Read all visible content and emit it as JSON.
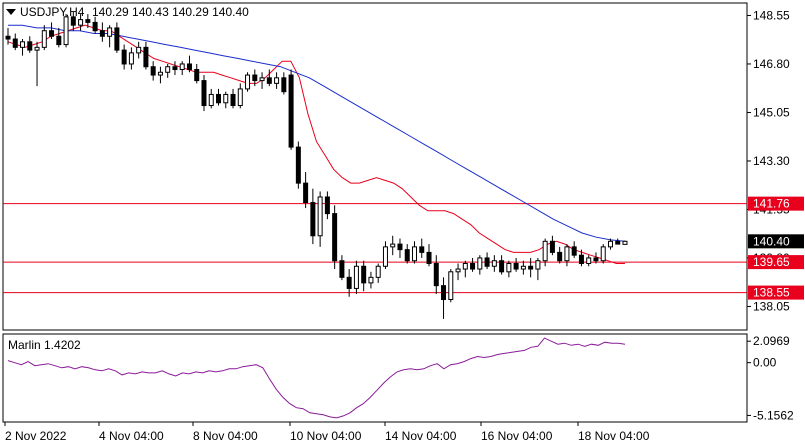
{
  "header": {
    "symbol": "USDJPY,H4",
    "ohlc": "140.29 140.43 140.29 140.40"
  },
  "indicator": {
    "label": "Marlin 1.4202"
  },
  "colors": {
    "bull_fill": "#ffffff",
    "bear_fill": "#000000",
    "ma_fast": "#e8001c",
    "ma_slow": "#1a2ecc",
    "level": "#e8001c",
    "osc": "#8b1a9a",
    "price_tag": "#000000",
    "level_tag": "#e8001c"
  },
  "chart_data": [
    {
      "type": "candlestick",
      "title": "USDJPY,H4",
      "x_labels": [
        "2 Nov 2022",
        "4 Nov 04:00",
        "8 Nov 04:00",
        "10 Nov 04:00",
        "14 Nov 04:00",
        "16 Nov 04:00",
        "18 Nov 04:00"
      ],
      "y_ticks": [
        "148.55",
        "146.80",
        "145.05",
        "143.30",
        "141.55",
        "139.80",
        "138.05"
      ],
      "ylim": [
        137.2,
        149.0
      ],
      "candles": [
        [
          147.8,
          148.1,
          147.5,
          147.7
        ],
        [
          147.7,
          147.9,
          147.3,
          147.4
        ],
        [
          147.4,
          147.7,
          147.1,
          147.6
        ],
        [
          147.6,
          147.8,
          147.2,
          147.3
        ],
        [
          147.3,
          147.6,
          146.0,
          147.4
        ],
        [
          147.4,
          148.2,
          147.3,
          148.0
        ],
        [
          148.0,
          148.3,
          147.7,
          147.8
        ],
        [
          147.8,
          148.1,
          147.4,
          147.5
        ],
        [
          147.5,
          148.6,
          147.4,
          148.5
        ],
        [
          148.5,
          148.7,
          148.0,
          148.2
        ],
        [
          148.2,
          148.6,
          148.0,
          148.4
        ],
        [
          148.4,
          148.6,
          148.1,
          148.3
        ],
        [
          148.3,
          148.5,
          147.9,
          148.0
        ],
        [
          148.0,
          148.3,
          147.6,
          147.8
        ],
        [
          147.8,
          148.2,
          147.4,
          148.1
        ],
        [
          148.1,
          148.3,
          147.2,
          147.3
        ],
        [
          147.3,
          147.5,
          146.6,
          146.8
        ],
        [
          146.8,
          147.4,
          146.6,
          147.2
        ],
        [
          147.2,
          147.6,
          147.0,
          147.4
        ],
        [
          147.4,
          147.6,
          146.6,
          146.7
        ],
        [
          146.7,
          146.9,
          146.2,
          146.4
        ],
        [
          146.4,
          146.7,
          146.1,
          146.5
        ],
        [
          146.5,
          146.8,
          146.3,
          146.7
        ],
        [
          146.7,
          146.9,
          146.4,
          146.6
        ],
        [
          146.6,
          146.9,
          146.4,
          146.8
        ],
        [
          146.8,
          147.1,
          146.5,
          146.6
        ],
        [
          146.6,
          146.8,
          146.1,
          146.2
        ],
        [
          146.2,
          146.4,
          145.1,
          145.3
        ],
        [
          145.3,
          145.9,
          145.2,
          145.7
        ],
        [
          145.7,
          145.9,
          145.3,
          145.4
        ],
        [
          145.4,
          145.8,
          145.2,
          145.7
        ],
        [
          145.7,
          145.9,
          145.2,
          145.3
        ],
        [
          145.3,
          146.1,
          145.2,
          145.9
        ],
        [
          145.9,
          146.5,
          145.8,
          146.4
        ],
        [
          146.4,
          146.6,
          146.0,
          146.2
        ],
        [
          146.2,
          146.5,
          145.9,
          146.3
        ],
        [
          146.3,
          146.6,
          146.0,
          146.1
        ],
        [
          146.1,
          146.5,
          145.9,
          146.3
        ],
        [
          146.3,
          146.5,
          145.7,
          145.8
        ],
        [
          146.4,
          146.6,
          143.7,
          143.8
        ],
        [
          143.8,
          144.0,
          142.3,
          142.5
        ],
        [
          142.5,
          142.9,
          141.6,
          141.8
        ],
        [
          141.8,
          142.3,
          140.3,
          140.6
        ],
        [
          140.6,
          142.2,
          140.2,
          142.0
        ],
        [
          142.0,
          142.2,
          141.2,
          141.4
        ],
        [
          141.4,
          141.7,
          139.4,
          139.7
        ],
        [
          139.7,
          139.9,
          139.0,
          139.1
        ],
        [
          139.1,
          139.4,
          138.4,
          138.7
        ],
        [
          138.7,
          139.7,
          138.5,
          139.5
        ],
        [
          139.5,
          139.7,
          138.6,
          138.9
        ],
        [
          138.9,
          139.3,
          138.7,
          139.1
        ],
        [
          139.1,
          139.6,
          138.9,
          139.5
        ],
        [
          139.5,
          140.4,
          139.4,
          140.2
        ],
        [
          140.2,
          140.6,
          139.9,
          140.3
        ],
        [
          140.3,
          140.5,
          139.8,
          140.1
        ],
        [
          140.1,
          140.3,
          139.6,
          139.7
        ],
        [
          139.7,
          140.4,
          139.6,
          140.2
        ],
        [
          140.2,
          140.5,
          139.8,
          140.0
        ],
        [
          140.0,
          140.3,
          139.5,
          139.6
        ],
        [
          139.6,
          139.9,
          138.5,
          138.8
        ],
        [
          138.8,
          139.1,
          137.6,
          138.3
        ],
        [
          138.3,
          139.4,
          138.2,
          139.3
        ],
        [
          139.3,
          139.6,
          139.0,
          139.4
        ],
        [
          139.4,
          139.7,
          139.1,
          139.6
        ],
        [
          139.6,
          139.8,
          139.3,
          139.4
        ],
        [
          139.4,
          139.9,
          139.2,
          139.8
        ],
        [
          139.8,
          140.0,
          139.4,
          139.5
        ],
        [
          139.5,
          139.9,
          139.3,
          139.7
        ],
        [
          139.7,
          139.9,
          139.2,
          139.3
        ],
        [
          139.3,
          139.7,
          139.1,
          139.6
        ],
        [
          139.6,
          139.8,
          139.3,
          139.4
        ],
        [
          139.4,
          139.7,
          139.2,
          139.5
        ],
        [
          139.5,
          139.8,
          139.1,
          139.4
        ],
        [
          139.4,
          139.8,
          139.0,
          139.7
        ],
        [
          139.7,
          140.5,
          139.5,
          140.4
        ],
        [
          140.4,
          140.6,
          139.9,
          140.0
        ],
        [
          140.0,
          140.2,
          139.6,
          139.7
        ],
        [
          139.7,
          140.3,
          139.5,
          140.2
        ],
        [
          140.2,
          140.4,
          139.8,
          139.9
        ],
        [
          139.9,
          140.1,
          139.5,
          139.6
        ],
        [
          139.6,
          139.9,
          139.5,
          139.8
        ],
        [
          139.8,
          140.0,
          139.6,
          139.7
        ],
        [
          139.7,
          140.3,
          139.6,
          140.2
        ],
        [
          140.2,
          140.5,
          140.1,
          140.4
        ],
        [
          140.4,
          140.5,
          140.3,
          140.3
        ],
        [
          140.29,
          140.43,
          140.29,
          140.4
        ]
      ],
      "ma_fast": [
        147.6,
        147.5,
        147.4,
        147.5,
        147.6,
        147.8,
        147.9,
        148.0,
        148.1,
        148.2,
        148.1,
        148.0,
        148.0,
        147.8,
        147.6,
        147.4,
        147.2,
        147.0,
        146.9,
        146.8,
        146.7,
        146.6,
        146.5,
        146.5,
        146.5,
        146.4,
        146.3,
        146.2,
        146.1,
        146.1,
        146.3,
        146.6,
        146.9,
        146.9,
        146.3,
        145.0,
        144.0,
        143.5,
        143.0,
        142.7,
        142.5,
        142.5,
        142.6,
        142.7,
        142.6,
        142.5,
        142.3,
        142.0,
        141.7,
        141.5,
        141.5,
        141.5,
        141.4,
        141.2,
        141.0,
        140.7,
        140.5,
        140.3,
        140.1,
        140.0,
        140.0,
        140.0,
        140.1,
        140.3,
        140.4,
        140.3,
        140.1,
        140.0,
        139.9,
        139.8,
        139.7,
        139.6,
        139.6
      ],
      "ma_slow": [
        148.2,
        148.2,
        148.1,
        148.1,
        148.0,
        148.0,
        147.9,
        147.9,
        147.8,
        147.7,
        147.6,
        147.5,
        147.4,
        147.3,
        147.2,
        147.1,
        147.0,
        146.9,
        146.8,
        146.7,
        146.5,
        146.3,
        146.0,
        145.7,
        145.4,
        145.1,
        144.8,
        144.5,
        144.2,
        143.9,
        143.6,
        143.3,
        143.0,
        142.7,
        142.4,
        142.1,
        141.8,
        141.5,
        141.2,
        140.95,
        140.7,
        140.55,
        140.45,
        140.4
      ],
      "levels": [
        {
          "value": "141.76"
        },
        {
          "value": "139.65"
        },
        {
          "value": "138.55"
        }
      ],
      "current_price": "140.40"
    },
    {
      "type": "line",
      "title": "Marlin 1.4202",
      "y_ticks": [
        "2.0969",
        "0.00",
        "-5.1562"
      ],
      "ylim": [
        -5.8,
        2.8
      ],
      "values": [
        0.2,
        0.0,
        -0.2,
        0.1,
        -0.3,
        -0.2,
        -0.1,
        -0.3,
        -0.5,
        -0.4,
        -0.6,
        -0.4,
        -0.5,
        -0.7,
        -0.8,
        -0.6,
        -0.8,
        -1.2,
        -1.0,
        -1.1,
        -0.9,
        -1.0,
        -1.0,
        -0.8,
        -1.1,
        -1.3,
        -1.0,
        -1.1,
        -0.9,
        -1.0,
        -0.8,
        -0.9,
        -0.8,
        -0.6,
        -0.6,
        -0.4,
        -0.3,
        -0.2,
        -0.5,
        -1.6,
        -2.6,
        -3.4,
        -4.0,
        -4.4,
        -4.5,
        -4.9,
        -5.0,
        -5.1,
        -5.3,
        -5.4,
        -5.2,
        -4.9,
        -4.4,
        -4.0,
        -3.4,
        -2.7,
        -2.0,
        -1.4,
        -0.9,
        -0.7,
        -0.6,
        -0.7,
        -0.6,
        -0.3,
        -0.1,
        -0.6,
        -0.2,
        -0.1,
        0.1,
        0.4,
        0.6,
        0.5,
        0.6,
        0.8,
        0.9,
        1.0,
        1.1,
        1.2,
        1.5,
        1.6,
        2.4,
        2.1,
        1.8,
        1.9,
        1.7,
        1.8,
        1.6,
        1.8,
        1.7,
        2.0,
        1.9,
        1.9,
        1.8
      ]
    }
  ]
}
